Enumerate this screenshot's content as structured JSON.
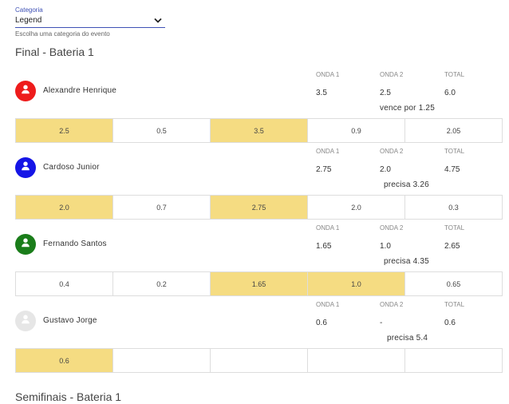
{
  "category": {
    "label": "Categoria",
    "value": "Legend",
    "helper": "Escolha uma categoria do evento",
    "chevron_icon": "chevron-down-icon"
  },
  "heats": [
    {
      "title": "Final - Bateria 1"
    },
    {
      "title": "Semifinais - Bateria 1"
    }
  ],
  "columns": {
    "wave1": "ONDA 1",
    "wave2": "ONDA 2",
    "total": "TOTAL"
  },
  "athletes": [
    {
      "name": "Alexandre Henrique",
      "color": "#ee1c1c",
      "wave1": "3.5",
      "wave2": "2.5",
      "total": "6.0",
      "status": "vence por 1.25",
      "scores": [
        "2.5",
        "0.5",
        "3.5",
        "0.9",
        "2.05"
      ],
      "highlight": [
        true,
        false,
        true,
        false,
        false
      ]
    },
    {
      "name": "Cardoso Junior",
      "color": "#1515e6",
      "wave1": "2.75",
      "wave2": "2.0",
      "total": "4.75",
      "status": "precisa 3.26",
      "scores": [
        "2.0",
        "0.7",
        "2.75",
        "2.0",
        "0.3"
      ],
      "highlight": [
        true,
        false,
        true,
        false,
        false
      ]
    },
    {
      "name": "Fernando Santos",
      "color": "#1a7d1a",
      "wave1": "1.65",
      "wave2": "1.0",
      "total": "2.65",
      "status": "precisa 4.35",
      "scores": [
        "0.4",
        "0.2",
        "1.65",
        "1.0",
        "0.65"
      ],
      "highlight": [
        false,
        false,
        true,
        true,
        false
      ]
    },
    {
      "name": "Gustavo Jorge",
      "color": "#e6e6e6",
      "wave1": "0.6",
      "wave2": "-",
      "total": "0.6",
      "status": "precisa 5.4",
      "scores": [
        "0.6",
        "",
        "",
        "",
        ""
      ],
      "highlight": [
        true,
        false,
        false,
        false,
        false
      ]
    }
  ]
}
